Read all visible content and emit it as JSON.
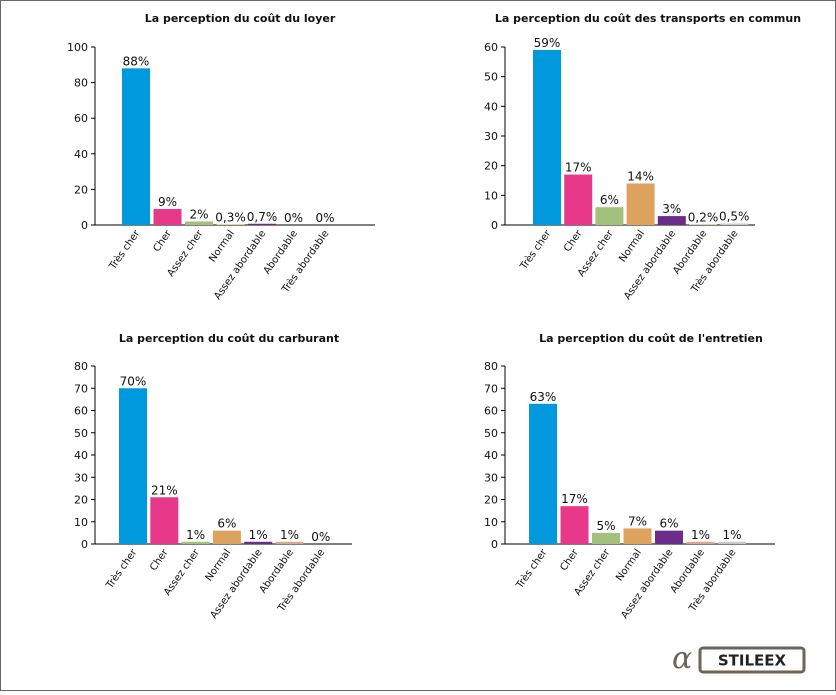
{
  "chart_data": [
    {
      "type": "bar",
      "title": "La perception du coût du loyer",
      "categories": [
        "Très cher",
        "Cher",
        "Assez cher",
        "Normal",
        "Assez abordable",
        "Abordable",
        "Très abordable"
      ],
      "values": [
        88,
        9,
        2,
        0.3,
        0.7,
        0,
        0
      ],
      "value_labels": [
        "88%",
        "9%",
        "2%",
        "0,3%",
        "0,7%",
        "0%",
        "0%"
      ],
      "colors": [
        "#0099dd",
        "#e8388a",
        "#a3c07c",
        "#dda35e",
        "#6b2c8a",
        "#d8a88a",
        "#c8c8c8"
      ],
      "ylim": [
        0,
        100
      ],
      "yticks": [
        0,
        20,
        40,
        60,
        80,
        100
      ]
    },
    {
      "type": "bar",
      "title": "La perception du coût des transports en commun",
      "categories": [
        "Très cher",
        "Cher",
        "Assez cher",
        "Normal",
        "Assez abordable",
        "Abordable",
        "Très abordable"
      ],
      "values": [
        59,
        17,
        6,
        14,
        3,
        0.2,
        0.5
      ],
      "value_labels": [
        "59%",
        "17%",
        "6%",
        "14%",
        "3%",
        "0,2%",
        "0,5%"
      ],
      "colors": [
        "#0099dd",
        "#e8388a",
        "#a3c07c",
        "#dda35e",
        "#6b2c8a",
        "#d8a88a",
        "#c8c8c8"
      ],
      "ylim": [
        0,
        60
      ],
      "yticks": [
        0,
        10,
        20,
        30,
        40,
        50,
        60
      ]
    },
    {
      "type": "bar",
      "title": "La perception du coût du carburant",
      "categories": [
        "Très cher",
        "Cher",
        "Assez cher",
        "Normal",
        "Assez abordable",
        "Abordable",
        "Très abordable"
      ],
      "values": [
        70,
        21,
        1,
        6,
        1,
        1,
        0
      ],
      "value_labels": [
        "70%",
        "21%",
        "1%",
        "6%",
        "1%",
        "1%",
        "0%"
      ],
      "colors": [
        "#0099dd",
        "#e8388a",
        "#a3c07c",
        "#dda35e",
        "#6b2c8a",
        "#d8a88a",
        "#c8c8c8"
      ],
      "ylim": [
        0,
        80
      ],
      "yticks": [
        0,
        10,
        20,
        30,
        40,
        50,
        60,
        70,
        80
      ]
    },
    {
      "type": "bar",
      "title": "La perception du coût de l'entretien",
      "categories": [
        "Très cher",
        "Cher",
        "Assez cher",
        "Normal",
        "Assez abordable",
        "Abordable",
        "Très abordable"
      ],
      "values": [
        63,
        17,
        5,
        7,
        6,
        1,
        1
      ],
      "value_labels": [
        "63%",
        "17%",
        "5%",
        "7%",
        "6%",
        "1%",
        "1%"
      ],
      "colors": [
        "#0099dd",
        "#e8388a",
        "#a3c07c",
        "#dda35e",
        "#6b2c8a",
        "#d8a88a",
        "#c8c8c8"
      ],
      "ylim": [
        0,
        80
      ],
      "yticks": [
        0,
        10,
        20,
        30,
        40,
        50,
        60,
        70,
        80
      ]
    }
  ],
  "logo": "STILEEX"
}
